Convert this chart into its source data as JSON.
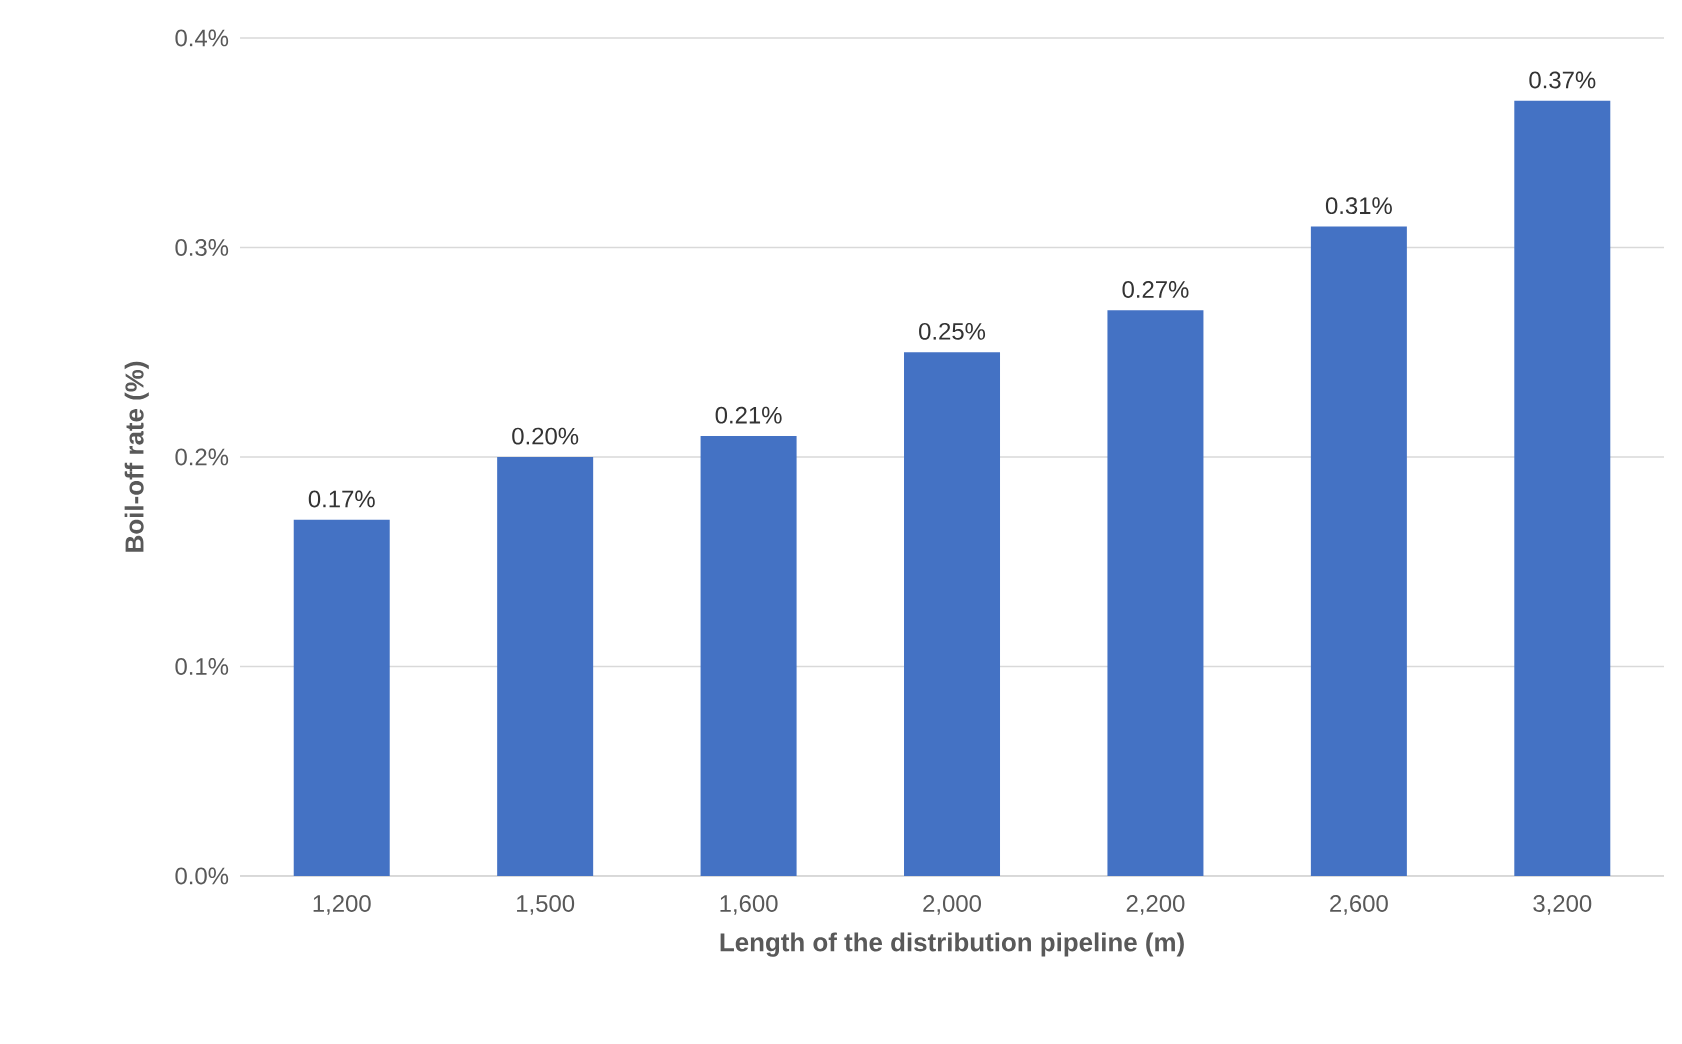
{
  "chart_data": {
    "type": "bar",
    "xlabel": "Length of the distribution pipeline (m)",
    "ylabel": "Boil-off rate (%)",
    "categories": [
      "1,200",
      "1,500",
      "1,600",
      "2,000",
      "2,200",
      "2,600",
      "3,200"
    ],
    "values": [
      0.17,
      0.2,
      0.21,
      0.25,
      0.27,
      0.31,
      0.37
    ],
    "value_labels": [
      "0.17%",
      "0.20%",
      "0.21%",
      "0.25%",
      "0.27%",
      "0.31%",
      "0.37%"
    ],
    "color": "#4472c4",
    "ylim": [
      0,
      0.4
    ],
    "yticks": [
      {
        "value": 0,
        "label": "0.0%"
      },
      {
        "value": 0.1,
        "label": "0.1%"
      },
      {
        "value": 0.2,
        "label": "0.2%"
      },
      {
        "value": 0.3,
        "label": "0.3%"
      },
      {
        "value": 0.4,
        "label": "0.4%"
      }
    ],
    "grid": "y"
  }
}
